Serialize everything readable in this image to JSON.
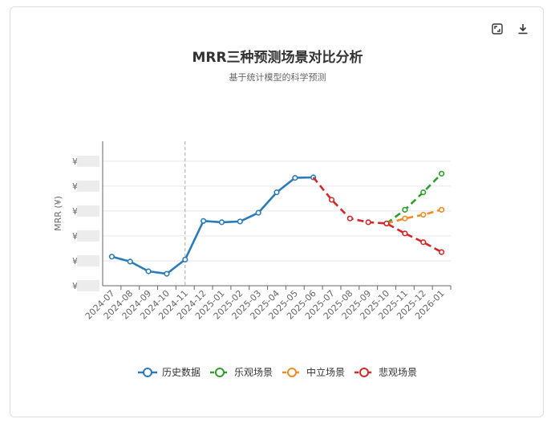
{
  "toolbar": {
    "expand_icon": "expand-icon",
    "download_icon": "download-icon"
  },
  "chart_data": {
    "type": "line",
    "title": "MRR三种预测场景对比分析",
    "subtitle": "基于统计模型的科学预测",
    "ylabel": "MRR (¥)",
    "ytick_prefix": "¥",
    "categories": [
      "2024-07",
      "2024-08",
      "2024-09",
      "2024-10",
      "2024-11",
      "2024-12",
      "2025-01",
      "2025-02",
      "2025-03",
      "2025-04",
      "2025-05",
      "2025-06",
      "2025-07",
      "2025-08",
      "2025-09",
      "2025-10",
      "2025-11",
      "2025-12",
      "2026-01"
    ],
    "ylim": [
      0,
      5.8
    ],
    "grid": true,
    "legend_position": "bottom",
    "divider_category": "2024-11",
    "series": [
      {
        "name": "历史数据",
        "color": "#2b7bba",
        "dashed": false,
        "values": [
          1.17,
          0.97,
          0.58,
          0.48,
          1.05,
          2.6,
          2.55,
          2.58,
          2.93,
          3.75,
          4.33,
          4.35,
          null,
          null,
          null,
          null,
          null,
          null,
          null
        ]
      },
      {
        "name": "乐观场景",
        "color": "#2ca02c",
        "dashed": true,
        "values": [
          null,
          null,
          null,
          null,
          null,
          null,
          null,
          null,
          null,
          null,
          null,
          null,
          null,
          null,
          null,
          2.5,
          3.05,
          3.75,
          4.5
        ]
      },
      {
        "name": "中立场景",
        "color": "#f08a24",
        "dashed": true,
        "values": [
          null,
          null,
          null,
          null,
          null,
          null,
          null,
          null,
          null,
          null,
          null,
          null,
          null,
          null,
          null,
          2.5,
          2.7,
          2.85,
          3.05
        ]
      },
      {
        "name": "悲观场景",
        "color": "#d62728",
        "dashed": true,
        "values": [
          null,
          null,
          null,
          null,
          null,
          null,
          null,
          null,
          null,
          null,
          null,
          4.35,
          3.45,
          2.7,
          2.55,
          2.5,
          2.1,
          1.75,
          1.35
        ]
      }
    ]
  }
}
